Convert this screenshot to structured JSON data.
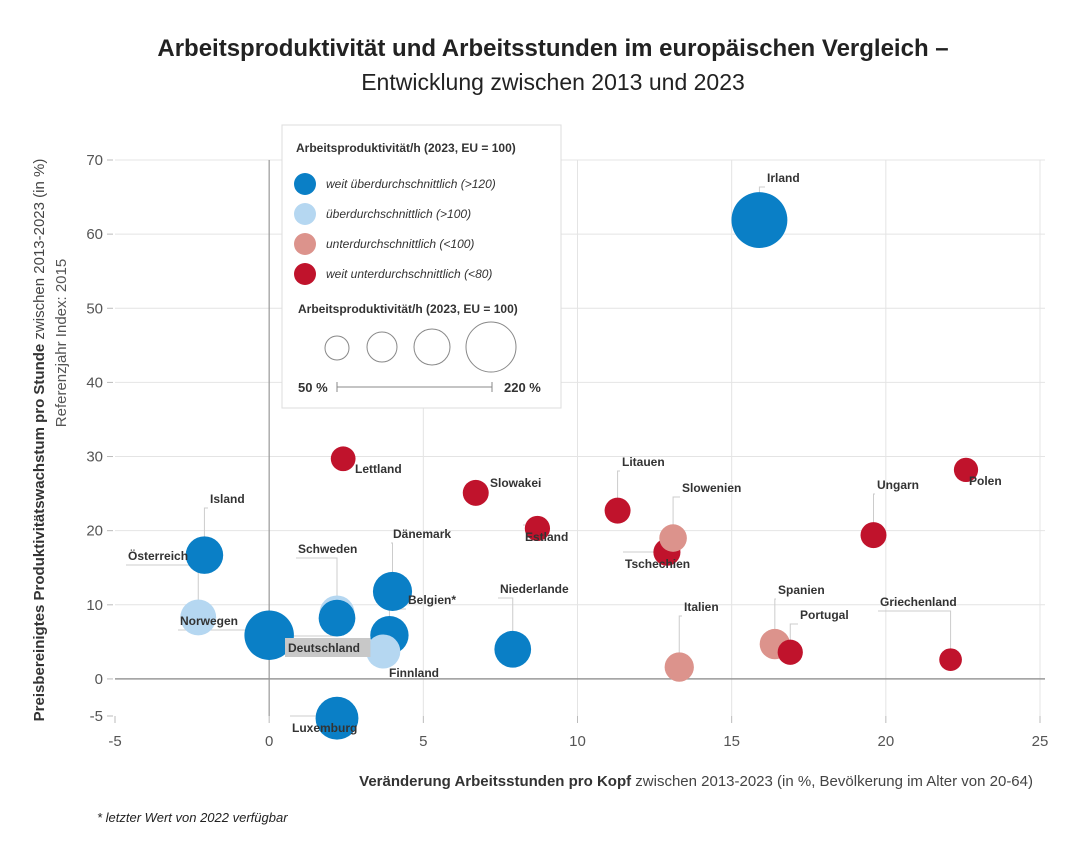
{
  "chart_data": {
    "type": "scatter",
    "title": "Arbeitsproduktivität und Arbeitsstunden im europäischen Vergleich –",
    "subtitle": "Entwicklung zwischen 2013 und 2023",
    "xlabel_bold": "Veränderung Arbeitsstunden pro Kopf",
    "xlabel_rest": " zwischen 2013-2023 (in %, Bevölkerung im Alter von 20-64)",
    "ylabel_bold": "Preisbereinigtes Produktivitätswachstum pro Stunde",
    "ylabel_rest": " zwischen 2013-2023 (in %)",
    "ylabel_line2": "Referenzjahr Index: 2015",
    "xlim": [
      -5,
      25
    ],
    "ylim": [
      -5,
      70
    ],
    "xticks": [
      "-5",
      "0",
      "5",
      "10",
      "15",
      "20",
      "25"
    ],
    "yticks": [
      "-5",
      "0",
      "10",
      "20",
      "30",
      "40",
      "50",
      "60",
      "70"
    ],
    "grid": true,
    "legend": {
      "position": "top-left",
      "color_title": "Arbeitsproduktivität/h (2023, EU = 100)",
      "categories": [
        {
          "key": "c1",
          "label": "weit überdurchschnittlich (>120)",
          "color": "#0a7fc6"
        },
        {
          "key": "c2",
          "label": "überdurchschnittlich (>100)",
          "color": "#b5d7f1"
        },
        {
          "key": "c3",
          "label": "unterdurchschnittlich (<100)",
          "color": "#dc938c"
        },
        {
          "key": "c4",
          "label": "weit unterdurchschnittlich (<80)",
          "color": "#c0132c"
        }
      ],
      "size_title": "Arbeitsproduktivität/h (2023, EU = 100)",
      "size_min_label": "50 %",
      "size_max_label": "220 %"
    },
    "points": [
      {
        "name": "Irland",
        "x": 15.9,
        "y": 61.9,
        "size": 255,
        "cat": "c1"
      },
      {
        "name": "Lettland",
        "x": 2.4,
        "y": 29.7,
        "size": 50,
        "cat": "c4"
      },
      {
        "name": "Slowakei",
        "x": 6.7,
        "y": 25.1,
        "size": 55,
        "cat": "c4"
      },
      {
        "name": "Estland",
        "x": 8.7,
        "y": 20.3,
        "size": 52,
        "cat": "c4"
      },
      {
        "name": "Litauen",
        "x": 11.3,
        "y": 22.7,
        "size": 55,
        "cat": "c4"
      },
      {
        "name": "Tschechien",
        "x": 12.9,
        "y": 17.1,
        "size": 60,
        "cat": "c4"
      },
      {
        "name": "Slowenien",
        "x": 13.1,
        "y": 19.0,
        "size": 62,
        "cat": "c3"
      },
      {
        "name": "Ungarn",
        "x": 19.6,
        "y": 19.4,
        "size": 55,
        "cat": "c4"
      },
      {
        "name": "Polen",
        "x": 22.6,
        "y": 28.2,
        "size": 48,
        "cat": "c4"
      },
      {
        "name": "Griechenland",
        "x": 22.1,
        "y": 2.6,
        "size": 42,
        "cat": "c4"
      },
      {
        "name": "Spanien",
        "x": 16.4,
        "y": 4.7,
        "size": 75,
        "cat": "c3"
      },
      {
        "name": "Portugal",
        "x": 16.9,
        "y": 3.6,
        "size": 52,
        "cat": "c4"
      },
      {
        "name": "Italien",
        "x": 13.3,
        "y": 1.6,
        "size": 70,
        "cat": "c3"
      },
      {
        "name": "Niederlande",
        "x": 7.9,
        "y": 4.0,
        "size": 110,
        "cat": "c1"
      },
      {
        "name": "Island",
        "x": -2.1,
        "y": 16.7,
        "size": 115,
        "cat": "c1"
      },
      {
        "name": "Österreich",
        "x": -2.3,
        "y": 8.3,
        "size": 105,
        "cat": "c2"
      },
      {
        "name": "Norwegen",
        "x": 0.0,
        "y": 5.9,
        "size": 200,
        "cat": "c1"
      },
      {
        "name": "Schweden",
        "x": 2.2,
        "y": 8.9,
        "size": 100,
        "cat": "c2"
      },
      {
        "name": "Deutschland",
        "x": 2.2,
        "y": 8.2,
        "size": 110,
        "cat": "c1"
      },
      {
        "name": "Dänemark",
        "x": 4.0,
        "y": 11.8,
        "size": 125,
        "cat": "c1"
      },
      {
        "name": "Belgien*",
        "x": 3.9,
        "y": 5.9,
        "size": 120,
        "cat": "c1"
      },
      {
        "name": "Finnland",
        "x": 3.7,
        "y": 3.7,
        "size": 95,
        "cat": "c2"
      },
      {
        "name": "Luxemburg",
        "x": 2.2,
        "y": -5.3,
        "size": 150,
        "cat": "c1"
      }
    ],
    "footnote": "* letzter Wert von 2022 verfügbar"
  }
}
